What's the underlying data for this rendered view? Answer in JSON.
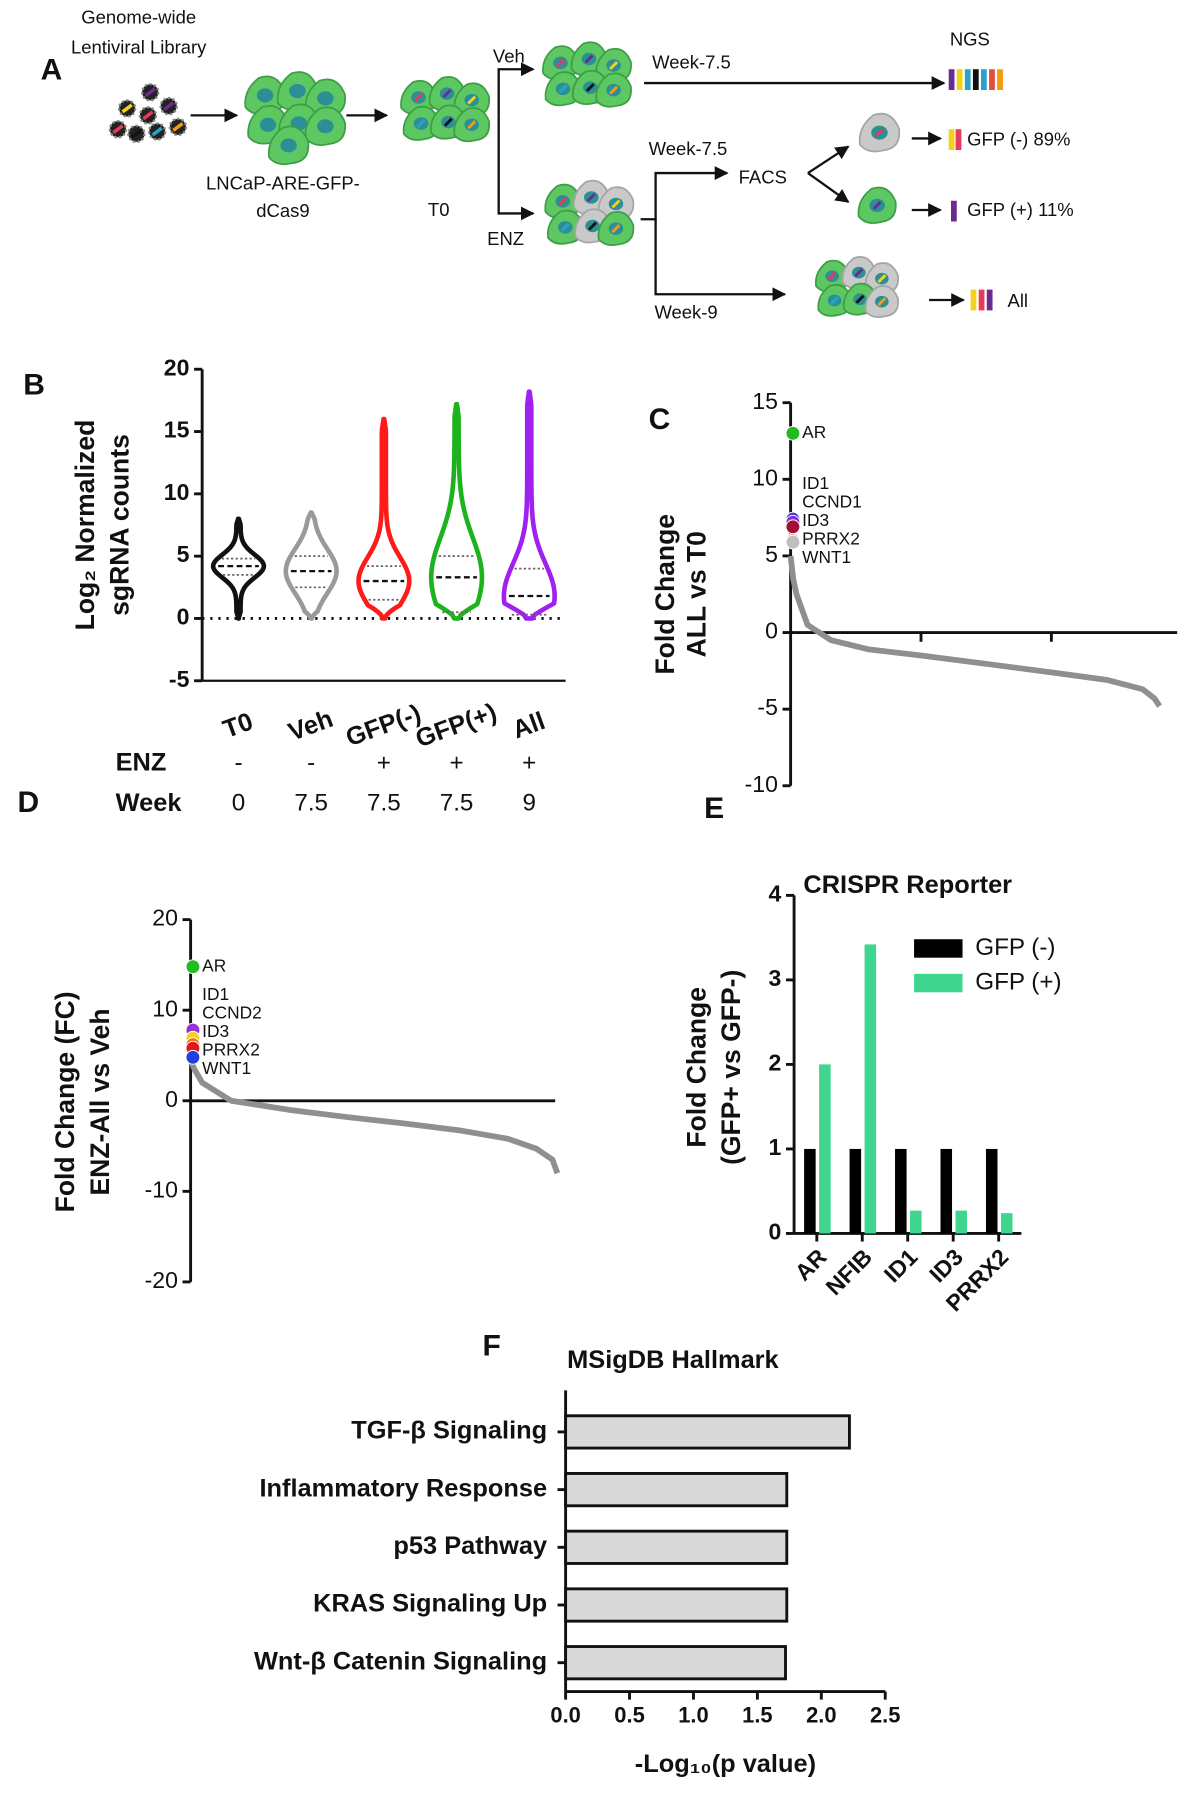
{
  "panel_labels": [
    "A",
    "B",
    "C",
    "D",
    "E",
    "F"
  ],
  "diagram": {
    "library": [
      "Genome-wide",
      "Lentiviral Library"
    ],
    "cell_line": [
      "LNCaP-ARE-GFP-",
      "dCas9"
    ],
    "t0": "T0",
    "veh": "Veh",
    "enz": "ENZ",
    "veh_week": "Week-7.5",
    "ngs": "NGS",
    "enz_week": "Week-7.5",
    "facs": "FACS",
    "gfp_neg": "GFP (-) 89%",
    "gfp_pos": "GFP (+) 11%",
    "late_week": "Week-9",
    "all": "All"
  },
  "chart_data": [
    {
      "type": "violin",
      "ylabel": [
        "Log₂ Normalized",
        "sgRNA counts"
      ],
      "categories": [
        "T0",
        "Veh",
        "GFP(-)",
        "GFP(+)",
        "All"
      ],
      "colors": [
        "#111111",
        "#9a9a9a",
        "#ff1a1a",
        "#1db31d",
        "#a020f0"
      ],
      "violins": [
        {
          "min": 0,
          "q1": 3.5,
          "median": 4.2,
          "q3": 4.8,
          "max": 8
        },
        {
          "min": 0,
          "q1": 2.5,
          "median": 3.8,
          "q3": 5,
          "max": 8.5
        },
        {
          "min": 0,
          "q1": 1.5,
          "median": 3,
          "q3": 4.2,
          "max": 16
        },
        {
          "min": 0,
          "q1": 0.5,
          "median": 3.3,
          "q3": 5,
          "max": 17.2
        },
        {
          "min": 0,
          "q1": 0.3,
          "median": 1.8,
          "q3": 4,
          "max": 18.2
        }
      ],
      "ylim": [
        -5,
        20
      ],
      "yticks": [
        -5,
        0,
        5,
        10,
        15,
        20
      ],
      "reference_line": 0,
      "conditions": {
        "rows": [
          {
            "label": "ENZ",
            "values": [
              "-",
              "-",
              "+",
              "+",
              "+"
            ]
          },
          {
            "label": "Week",
            "values": [
              0,
              7.5,
              7.5,
              7.5,
              9
            ]
          }
        ]
      }
    },
    {
      "type": "ranked",
      "ylabel": [
        "Fold Change",
        "ALL vs T0"
      ],
      "x": [
        0,
        20,
        45,
        130,
        310,
        600,
        1000,
        1460,
        2000,
        2430,
        2700,
        2790,
        2830
      ],
      "values": [
        5,
        3.5,
        2.5,
        0.5,
        -0.5,
        -1.1,
        -1.5,
        -2,
        -2.6,
        -3.1,
        -3.7,
        -4.3,
        -4.8
      ],
      "color": "#8f8f8f",
      "xlim": [
        0,
        3000
      ],
      "xticks": [
        1000,
        2000
      ],
      "ylim": [
        -10,
        15
      ],
      "yticks": [
        -10,
        -5,
        0,
        5,
        10,
        15
      ],
      "highlights": [
        {
          "name": "AR",
          "value": 13,
          "color": "#22bb22"
        },
        {
          "name": "ID1",
          "value": 7.4,
          "color": "#3a3ad8"
        },
        {
          "name": "CCND1",
          "value": 7.2,
          "color": "#8a2be2"
        },
        {
          "name": "ID3",
          "value": 6.9,
          "color": "#a01030"
        },
        {
          "name": "PRRX2",
          "value": 6,
          "color": "#f07070"
        },
        {
          "name": "WNT1",
          "value": 5.9,
          "color": "#c0c0c0"
        }
      ]
    },
    {
      "type": "ranked",
      "ylabel": [
        "Fold Change (FC)",
        "ENZ-All vs Veh"
      ],
      "x": [
        0,
        30,
        94,
        330,
        800,
        1270,
        1730,
        2200,
        2580,
        2810,
        2940,
        2980
      ],
      "values": [
        4.5,
        3.5,
        2,
        0,
        -1,
        -1.8,
        -2.5,
        -3.3,
        -4.2,
        -5.3,
        -6.5,
        -8
      ],
      "color": "#8f8f8f",
      "xlim": [
        0,
        3000
      ],
      "ylim": [
        -20,
        20
      ],
      "yticks": [
        -20,
        -10,
        0,
        10,
        20
      ],
      "highlights": [
        {
          "name": "AR",
          "value": 14.8,
          "color": "#22bb22"
        },
        {
          "name": "ID1",
          "value": 7.8,
          "color": "#9b30d9"
        },
        {
          "name": "CCND2",
          "value": 6.9,
          "color": "#f2d21b"
        },
        {
          "name": "ID3",
          "value": 6.2,
          "color": "#f07020"
        },
        {
          "name": "PRRX2",
          "value": 5.8,
          "color": "#e01818"
        },
        {
          "name": "WNT1",
          "value": 4.8,
          "color": "#2040e0"
        }
      ]
    },
    {
      "type": "bar",
      "title": "CRISPR Reporter",
      "ylabel": [
        "Fold Change",
        "(GFP+ vs GFP-)"
      ],
      "categories": [
        "AR",
        "NFIB",
        "ID1",
        "ID3",
        "PRRX2"
      ],
      "series": [
        {
          "name": "GFP (-)",
          "color": "#000000",
          "values": [
            1,
            1,
            1,
            1,
            1
          ]
        },
        {
          "name": "GFP (+)",
          "color": "#3fd58f",
          "values": [
            2,
            3.42,
            0.27,
            0.27,
            0.24
          ]
        }
      ],
      "ylim": [
        0,
        4
      ],
      "yticks": [
        0,
        1,
        2,
        3,
        4
      ],
      "legend": "upper-right"
    },
    {
      "type": "barh",
      "title": "MSigDB Hallmark",
      "xlabel": "-Log₁₀(p value)",
      "categories": [
        "TGF-β Signaling",
        "Inflammatory Response",
        "p53 Pathway",
        "KRAS Signaling Up",
        "Wnt-β Catenin Signaling"
      ],
      "values": [
        2.22,
        1.73,
        1.73,
        1.73,
        1.72
      ],
      "color": "#d9d9d9",
      "xlim": [
        0,
        2.5
      ],
      "xticks": [
        {
          "value": 0,
          "label": "0.0"
        },
        0.5,
        {
          "value": 1,
          "label": "1.0"
        },
        1.5,
        {
          "value": 2,
          "label": "2.0"
        },
        2.5
      ]
    }
  ]
}
